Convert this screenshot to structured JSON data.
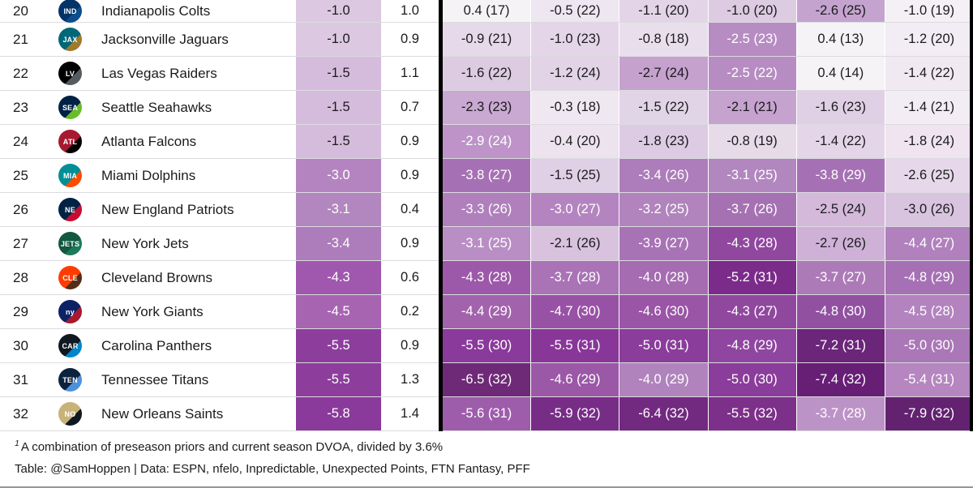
{
  "chart_data": {
    "type": "table",
    "visible_rank_range": [
      20,
      32
    ],
    "headers_visible": false,
    "rows": [
      {
        "rank": "20",
        "team": "Indianapolis Colts",
        "logo": {
          "abbr": "IND",
          "bg": "#013369",
          "accent": "#0c4e8a",
          "fg": "#ffffff"
        },
        "total": {
          "v": "-1.0",
          "bg": "#dcc8e1",
          "fg": "#1b1b1d"
        },
        "variance": "1.0",
        "cells": [
          {
            "v": "0.4 (17)",
            "bg": "#f6f3f7",
            "fg": "#1b1b1d"
          },
          {
            "v": "-0.5 (22)",
            "bg": "#eee6f0",
            "fg": "#1b1b1d"
          },
          {
            "v": "-1.1 (20)",
            "bg": "#e3d4e7",
            "fg": "#1b1b1d"
          },
          {
            "v": "-1.0 (20)",
            "bg": "#ddcbe2",
            "fg": "#1b1b1d"
          },
          {
            "v": "-2.6 (25)",
            "bg": "#c5a3cf",
            "fg": "#1b1b1d"
          },
          {
            "v": "-1.0 (19)",
            "bg": "#f4f0f5",
            "fg": "#1b1b1d"
          }
        ]
      },
      {
        "rank": "21",
        "team": "Jacksonville Jaguars",
        "logo": {
          "abbr": "JAX",
          "bg": "#006778",
          "accent": "#9f792c",
          "fg": "#ffffff"
        },
        "total": {
          "v": "-1.0",
          "bg": "#dcc8e1",
          "fg": "#1b1b1d"
        },
        "variance": "0.9",
        "cells": [
          {
            "v": "-0.9 (21)",
            "bg": "#e6d9e9",
            "fg": "#1b1b1d"
          },
          {
            "v": "-1.0 (23)",
            "bg": "#e4d6e8",
            "fg": "#1b1b1d"
          },
          {
            "v": "-0.8 (18)",
            "bg": "#e9dfec",
            "fg": "#1b1b1d"
          },
          {
            "v": "-2.5 (23)",
            "bg": "#b78cc2",
            "fg": "#ffffff"
          },
          {
            "v": "0.4 (13)",
            "bg": "#f6f3f7",
            "fg": "#1b1b1d"
          },
          {
            "v": "-1.2 (20)",
            "bg": "#f2ecf4",
            "fg": "#1b1b1d"
          }
        ]
      },
      {
        "rank": "22",
        "team": "Las Vegas Raiders",
        "logo": {
          "abbr": "LV",
          "bg": "#000000",
          "accent": "#555b60",
          "fg": "#ffffff"
        },
        "total": {
          "v": "-1.5",
          "bg": "#d5bcdc",
          "fg": "#1b1b1d"
        },
        "variance": "1.1",
        "cells": [
          {
            "v": "-1.6 (22)",
            "bg": "#ddcbe2",
            "fg": "#1b1b1d"
          },
          {
            "v": "-1.2 (24)",
            "bg": "#e2d3e6",
            "fg": "#1b1b1d"
          },
          {
            "v": "-2.7 (24)",
            "bg": "#c5a1ce",
            "fg": "#1b1b1d"
          },
          {
            "v": "-2.5 (22)",
            "bg": "#b78cc2",
            "fg": "#ffffff"
          },
          {
            "v": "0.4 (14)",
            "bg": "#f6f3f7",
            "fg": "#1b1b1d"
          },
          {
            "v": "-1.4 (22)",
            "bg": "#f0e9f2",
            "fg": "#1b1b1d"
          }
        ]
      },
      {
        "rank": "23",
        "team": "Seattle Seahawks",
        "logo": {
          "abbr": "SEA",
          "bg": "#002244",
          "accent": "#69be28",
          "fg": "#ffffff"
        },
        "total": {
          "v": "-1.5",
          "bg": "#d5bcdc",
          "fg": "#1b1b1d"
        },
        "variance": "0.7",
        "cells": [
          {
            "v": "-2.3 (23)",
            "bg": "#c9a8d1",
            "fg": "#1b1b1d"
          },
          {
            "v": "-0.3 (18)",
            "bg": "#efe8f1",
            "fg": "#1b1b1d"
          },
          {
            "v": "-1.5 (22)",
            "bg": "#e2d4e7",
            "fg": "#1b1b1d"
          },
          {
            "v": "-2.1 (21)",
            "bg": "#c6a3cf",
            "fg": "#1b1b1d"
          },
          {
            "v": "-1.6 (23)",
            "bg": "#e0d0e5",
            "fg": "#1b1b1d"
          },
          {
            "v": "-1.4 (21)",
            "bg": "#f2edf4",
            "fg": "#1b1b1d"
          }
        ]
      },
      {
        "rank": "24",
        "team": "Atlanta Falcons",
        "logo": {
          "abbr": "ATL",
          "bg": "#a71930",
          "accent": "#000000",
          "fg": "#ffffff"
        },
        "total": {
          "v": "-1.5",
          "bg": "#d5bcdc",
          "fg": "#1b1b1d"
        },
        "variance": "0.9",
        "cells": [
          {
            "v": "-2.9 (24)",
            "bg": "#bd93c8",
            "fg": "#ffffff"
          },
          {
            "v": "-0.4 (20)",
            "bg": "#ece3ee",
            "fg": "#1b1b1d"
          },
          {
            "v": "-1.8 (23)",
            "bg": "#ddcbe3",
            "fg": "#1b1b1d"
          },
          {
            "v": "-0.8 (19)",
            "bg": "#e7dbea",
            "fg": "#1b1b1d"
          },
          {
            "v": "-1.4 (22)",
            "bg": "#e4d6e8",
            "fg": "#1b1b1d"
          },
          {
            "v": "-1.8 (24)",
            "bg": "#efe4f0",
            "fg": "#1b1b1d"
          }
        ]
      },
      {
        "rank": "25",
        "team": "Miami Dolphins",
        "logo": {
          "abbr": "MIA",
          "bg": "#008e97",
          "accent": "#fc4c02",
          "fg": "#ffffff"
        },
        "total": {
          "v": "-3.0",
          "bg": "#b484c0",
          "fg": "#ffffff"
        },
        "variance": "0.9",
        "cells": [
          {
            "v": "-3.8 (27)",
            "bg": "#a671b4",
            "fg": "#ffffff"
          },
          {
            "v": "-1.5 (25)",
            "bg": "#e0d0e5",
            "fg": "#1b1b1d"
          },
          {
            "v": "-3.4 (26)",
            "bg": "#ad7cba",
            "fg": "#ffffff"
          },
          {
            "v": "-3.1 (25)",
            "bg": "#b286bf",
            "fg": "#ffffff"
          },
          {
            "v": "-3.8 (29)",
            "bg": "#a671b4",
            "fg": "#ffffff"
          },
          {
            "v": "-2.6 (25)",
            "bg": "#e6d8ea",
            "fg": "#1b1b1d"
          }
        ]
      },
      {
        "rank": "26",
        "team": "New England Patriots",
        "logo": {
          "abbr": "NE",
          "bg": "#002244",
          "accent": "#c60c30",
          "fg": "#ffffff"
        },
        "total": {
          "v": "-3.1",
          "bg": "#b286bf",
          "fg": "#ffffff"
        },
        "variance": "0.4",
        "cells": [
          {
            "v": "-3.3 (26)",
            "bg": "#af80bc",
            "fg": "#ffffff"
          },
          {
            "v": "-3.0 (27)",
            "bg": "#b484c0",
            "fg": "#ffffff"
          },
          {
            "v": "-3.2 (25)",
            "bg": "#b184bd",
            "fg": "#ffffff"
          },
          {
            "v": "-3.7 (26)",
            "bg": "#a671b2",
            "fg": "#ffffff"
          },
          {
            "v": "-2.5 (24)",
            "bg": "#d4b9db",
            "fg": "#1b1b1d"
          },
          {
            "v": "-3.0 (26)",
            "bg": "#d9c4df",
            "fg": "#1b1b1d"
          }
        ]
      },
      {
        "rank": "27",
        "team": "New York Jets",
        "logo": {
          "abbr": "JETS",
          "bg": "#125740",
          "accent": "#1b7a5a",
          "fg": "#ffffff"
        },
        "total": {
          "v": "-3.4",
          "bg": "#ad7cba",
          "fg": "#ffffff"
        },
        "variance": "0.9",
        "cells": [
          {
            "v": "-3.1 (25)",
            "bg": "#b98ec4",
            "fg": "#ffffff"
          },
          {
            "v": "-2.1 (26)",
            "bg": "#d8c2de",
            "fg": "#1b1b1d"
          },
          {
            "v": "-3.9 (27)",
            "bg": "#a873b5",
            "fg": "#ffffff"
          },
          {
            "v": "-4.3 (28)",
            "bg": "#90489f",
            "fg": "#ffffff"
          },
          {
            "v": "-2.7 (26)",
            "bg": "#cfb1d7",
            "fg": "#1b1b1d"
          },
          {
            "v": "-4.4 (27)",
            "bg": "#b081bd",
            "fg": "#ffffff"
          }
        ]
      },
      {
        "rank": "28",
        "team": "Cleveland Browns",
        "logo": {
          "abbr": "CLE",
          "bg": "#ff3c00",
          "accent": "#522d17",
          "fg": "#ffffff"
        },
        "total": {
          "v": "-4.3",
          "bg": "#9f58ad",
          "fg": "#ffffff"
        },
        "variance": "0.6",
        "cells": [
          {
            "v": "-4.3 (28)",
            "bg": "#9c59a9",
            "fg": "#ffffff"
          },
          {
            "v": "-3.7 (28)",
            "bg": "#a973b6",
            "fg": "#ffffff"
          },
          {
            "v": "-4.0 (28)",
            "bg": "#a56cb1",
            "fg": "#ffffff"
          },
          {
            "v": "-5.2 (31)",
            "bg": "#7b2b8a",
            "fg": "#ffffff"
          },
          {
            "v": "-3.7 (27)",
            "bg": "#ad7ab8",
            "fg": "#ffffff"
          },
          {
            "v": "-4.8 (29)",
            "bg": "#a671b4",
            "fg": "#ffffff"
          }
        ]
      },
      {
        "rank": "29",
        "team": "New York Giants",
        "logo": {
          "abbr": "ny",
          "bg": "#0b2265",
          "accent": "#a71930",
          "fg": "#ffffff"
        },
        "total": {
          "v": "-4.5",
          "bg": "#a765b1",
          "fg": "#ffffff"
        },
        "variance": "0.2",
        "cells": [
          {
            "v": "-4.4 (29)",
            "bg": "#a263ac",
            "fg": "#ffffff"
          },
          {
            "v": "-4.7 (30)",
            "bg": "#9852a5",
            "fg": "#ffffff"
          },
          {
            "v": "-4.6 (30)",
            "bg": "#9a55a6",
            "fg": "#ffffff"
          },
          {
            "v": "-4.3 (27)",
            "bg": "#90489f",
            "fg": "#ffffff"
          },
          {
            "v": "-4.8 (30)",
            "bg": "#9150a0",
            "fg": "#ffffff"
          },
          {
            "v": "-4.5 (28)",
            "bg": "#b383bf",
            "fg": "#ffffff"
          }
        ]
      },
      {
        "rank": "30",
        "team": "Carolina Panthers",
        "logo": {
          "abbr": "CAR",
          "bg": "#101820",
          "accent": "#0085ca",
          "fg": "#ffffff"
        },
        "total": {
          "v": "-5.5",
          "bg": "#8d3e9d",
          "fg": "#ffffff"
        },
        "variance": "0.9",
        "cells": [
          {
            "v": "-5.5 (30)",
            "bg": "#8a3a9a",
            "fg": "#ffffff"
          },
          {
            "v": "-5.5 (31)",
            "bg": "#883798",
            "fg": "#ffffff"
          },
          {
            "v": "-5.0 (31)",
            "bg": "#8a3d9a",
            "fg": "#ffffff"
          },
          {
            "v": "-4.8 (29)",
            "bg": "#8f46a0",
            "fg": "#ffffff"
          },
          {
            "v": "-7.2 (31)",
            "bg": "#6b2579",
            "fg": "#ffffff"
          },
          {
            "v": "-5.0 (30)",
            "bg": "#aa77b7",
            "fg": "#ffffff"
          }
        ]
      },
      {
        "rank": "31",
        "team": "Tennessee Titans",
        "logo": {
          "abbr": "TEN",
          "bg": "#0c2340",
          "accent": "#4b92db",
          "fg": "#ffffff"
        },
        "total": {
          "v": "-5.5",
          "bg": "#8d3e9d",
          "fg": "#ffffff"
        },
        "variance": "1.3",
        "cells": [
          {
            "v": "-6.5 (32)",
            "bg": "#6e2a77",
            "fg": "#ffffff"
          },
          {
            "v": "-4.6 (29)",
            "bg": "#9b58a7",
            "fg": "#ffffff"
          },
          {
            "v": "-4.0 (29)",
            "bg": "#b083bd",
            "fg": "#ffffff"
          },
          {
            "v": "-5.0 (30)",
            "bg": "#8a3d9a",
            "fg": "#ffffff"
          },
          {
            "v": "-7.4 (32)",
            "bg": "#671f76",
            "fg": "#ffffff"
          },
          {
            "v": "-5.4 (31)",
            "bg": "#b586c0",
            "fg": "#ffffff"
          }
        ]
      },
      {
        "rank": "32",
        "team": "New Orleans Saints",
        "logo": {
          "abbr": "NO",
          "bg": "#c8b27a",
          "accent": "#101820",
          "fg": "#ffffff"
        },
        "total": {
          "v": "-5.8",
          "bg": "#8a3a9a",
          "fg": "#ffffff"
        },
        "variance": "1.4",
        "cells": [
          {
            "v": "-5.6 (31)",
            "bg": "#9e5dab",
            "fg": "#ffffff"
          },
          {
            "v": "-5.9 (32)",
            "bg": "#772d86",
            "fg": "#ffffff"
          },
          {
            "v": "-6.4 (32)",
            "bg": "#722a80",
            "fg": "#ffffff"
          },
          {
            "v": "-5.5 (32)",
            "bg": "#7c3089",
            "fg": "#ffffff"
          },
          {
            "v": "-3.7 (28)",
            "bg": "#bc93c7",
            "fg": "#ffffff"
          },
          {
            "v": "-7.9 (32)",
            "bg": "#622270",
            "fg": "#ffffff"
          }
        ]
      }
    ]
  },
  "footnotes": {
    "mark": "1",
    "line1": "A combination of preseason priors and current season DVOA, divided by 3.6%",
    "credit": "Table: @SamHoppen | Data: ESPN, nfelo, Inpredictable, Unexpected Points, FTN Fantasy, PFF"
  },
  "colors": {
    "divider": "#000000",
    "row_border": "#dcdbe0",
    "bottom_rule": "#96969b",
    "heat_scale_light": "#f6f3f7",
    "heat_scale_dark": "#622270"
  }
}
